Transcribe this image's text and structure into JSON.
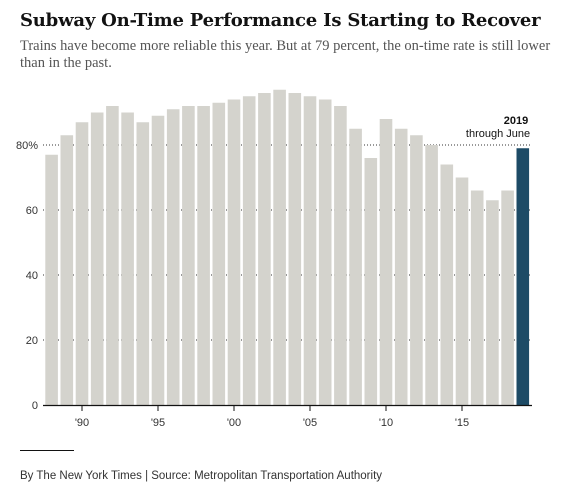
{
  "header": {
    "title": "Subway On-Time Performance Is Starting to Recover",
    "subtitle": "Trains have become more reliable this year. But at 79 percent, the on-time rate is still lower than in the past."
  },
  "annotation": {
    "year": "2019",
    "sub": "through June"
  },
  "footer": {
    "source": "By The New York Times | Source: Metropolitan Transportation Authority"
  },
  "colors": {
    "bar": "#d4d3cd",
    "highlight": "#1d4b66",
    "grid": "#333333",
    "baseline": "#121212"
  },
  "chart_data": {
    "type": "bar",
    "x": [
      1988,
      1989,
      1990,
      1991,
      1992,
      1993,
      1994,
      1995,
      1996,
      1997,
      1998,
      1999,
      2000,
      2001,
      2002,
      2003,
      2004,
      2005,
      2006,
      2007,
      2008,
      2009,
      2010,
      2011,
      2012,
      2013,
      2014,
      2015,
      2016,
      2017,
      2018,
      2019
    ],
    "values": [
      77,
      83,
      87,
      90,
      92,
      90,
      87,
      89,
      91,
      92,
      92,
      93,
      94,
      95,
      96,
      97,
      96,
      95,
      94,
      92,
      85,
      76,
      88,
      85,
      83,
      80,
      74,
      70,
      66,
      63,
      66,
      79
    ],
    "highlight_index": 31,
    "title": "Subway On-Time Performance Is Starting to Recover",
    "ylim": [
      0,
      100
    ],
    "y_ticks": [
      {
        "value": 0,
        "label": "0"
      },
      {
        "value": 20,
        "label": "20"
      },
      {
        "value": 40,
        "label": "40"
      },
      {
        "value": 60,
        "label": "60"
      },
      {
        "value": 80,
        "label": "80%"
      }
    ],
    "x_ticks": [
      {
        "value": 1990,
        "label": "'90"
      },
      {
        "value": 1995,
        "label": "'95"
      },
      {
        "value": 2000,
        "label": "'00"
      },
      {
        "value": 2005,
        "label": "'05"
      },
      {
        "value": 2010,
        "label": "'10"
      },
      {
        "value": 2015,
        "label": "'15"
      }
    ],
    "grid": true,
    "legend": "none"
  }
}
